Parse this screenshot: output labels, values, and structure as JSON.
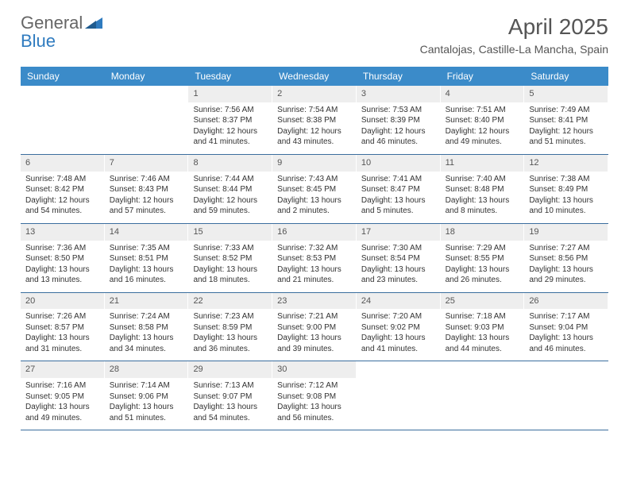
{
  "header": {
    "logo_text_1": "General",
    "logo_text_2": "Blue",
    "month_title": "April 2025",
    "location": "Cantalojas, Castille-La Mancha, Spain"
  },
  "colors": {
    "header_bar": "#3b8bc9",
    "header_bar_text": "#ffffff",
    "day_num_bg": "#eeeeee",
    "row_border": "#3b6e9e",
    "body_text": "#333333",
    "logo_gray": "#666666",
    "logo_blue": "#2f7bbf"
  },
  "weekdays": [
    "Sunday",
    "Monday",
    "Tuesday",
    "Wednesday",
    "Thursday",
    "Friday",
    "Saturday"
  ],
  "first_weekday_index": 2,
  "days": [
    {
      "n": "1",
      "sunrise": "7:56 AM",
      "sunset": "8:37 PM",
      "daylight": "12 hours and 41 minutes."
    },
    {
      "n": "2",
      "sunrise": "7:54 AM",
      "sunset": "8:38 PM",
      "daylight": "12 hours and 43 minutes."
    },
    {
      "n": "3",
      "sunrise": "7:53 AM",
      "sunset": "8:39 PM",
      "daylight": "12 hours and 46 minutes."
    },
    {
      "n": "4",
      "sunrise": "7:51 AM",
      "sunset": "8:40 PM",
      "daylight": "12 hours and 49 minutes."
    },
    {
      "n": "5",
      "sunrise": "7:49 AM",
      "sunset": "8:41 PM",
      "daylight": "12 hours and 51 minutes."
    },
    {
      "n": "6",
      "sunrise": "7:48 AM",
      "sunset": "8:42 PM",
      "daylight": "12 hours and 54 minutes."
    },
    {
      "n": "7",
      "sunrise": "7:46 AM",
      "sunset": "8:43 PM",
      "daylight": "12 hours and 57 minutes."
    },
    {
      "n": "8",
      "sunrise": "7:44 AM",
      "sunset": "8:44 PM",
      "daylight": "12 hours and 59 minutes."
    },
    {
      "n": "9",
      "sunrise": "7:43 AM",
      "sunset": "8:45 PM",
      "daylight": "13 hours and 2 minutes."
    },
    {
      "n": "10",
      "sunrise": "7:41 AM",
      "sunset": "8:47 PM",
      "daylight": "13 hours and 5 minutes."
    },
    {
      "n": "11",
      "sunrise": "7:40 AM",
      "sunset": "8:48 PM",
      "daylight": "13 hours and 8 minutes."
    },
    {
      "n": "12",
      "sunrise": "7:38 AM",
      "sunset": "8:49 PM",
      "daylight": "13 hours and 10 minutes."
    },
    {
      "n": "13",
      "sunrise": "7:36 AM",
      "sunset": "8:50 PM",
      "daylight": "13 hours and 13 minutes."
    },
    {
      "n": "14",
      "sunrise": "7:35 AM",
      "sunset": "8:51 PM",
      "daylight": "13 hours and 16 minutes."
    },
    {
      "n": "15",
      "sunrise": "7:33 AM",
      "sunset": "8:52 PM",
      "daylight": "13 hours and 18 minutes."
    },
    {
      "n": "16",
      "sunrise": "7:32 AM",
      "sunset": "8:53 PM",
      "daylight": "13 hours and 21 minutes."
    },
    {
      "n": "17",
      "sunrise": "7:30 AM",
      "sunset": "8:54 PM",
      "daylight": "13 hours and 23 minutes."
    },
    {
      "n": "18",
      "sunrise": "7:29 AM",
      "sunset": "8:55 PM",
      "daylight": "13 hours and 26 minutes."
    },
    {
      "n": "19",
      "sunrise": "7:27 AM",
      "sunset": "8:56 PM",
      "daylight": "13 hours and 29 minutes."
    },
    {
      "n": "20",
      "sunrise": "7:26 AM",
      "sunset": "8:57 PM",
      "daylight": "13 hours and 31 minutes."
    },
    {
      "n": "21",
      "sunrise": "7:24 AM",
      "sunset": "8:58 PM",
      "daylight": "13 hours and 34 minutes."
    },
    {
      "n": "22",
      "sunrise": "7:23 AM",
      "sunset": "8:59 PM",
      "daylight": "13 hours and 36 minutes."
    },
    {
      "n": "23",
      "sunrise": "7:21 AM",
      "sunset": "9:00 PM",
      "daylight": "13 hours and 39 minutes."
    },
    {
      "n": "24",
      "sunrise": "7:20 AM",
      "sunset": "9:02 PM",
      "daylight": "13 hours and 41 minutes."
    },
    {
      "n": "25",
      "sunrise": "7:18 AM",
      "sunset": "9:03 PM",
      "daylight": "13 hours and 44 minutes."
    },
    {
      "n": "26",
      "sunrise": "7:17 AM",
      "sunset": "9:04 PM",
      "daylight": "13 hours and 46 minutes."
    },
    {
      "n": "27",
      "sunrise": "7:16 AM",
      "sunset": "9:05 PM",
      "daylight": "13 hours and 49 minutes."
    },
    {
      "n": "28",
      "sunrise": "7:14 AM",
      "sunset": "9:06 PM",
      "daylight": "13 hours and 51 minutes."
    },
    {
      "n": "29",
      "sunrise": "7:13 AM",
      "sunset": "9:07 PM",
      "daylight": "13 hours and 54 minutes."
    },
    {
      "n": "30",
      "sunrise": "7:12 AM",
      "sunset": "9:08 PM",
      "daylight": "13 hours and 56 minutes."
    }
  ],
  "labels": {
    "sunrise": "Sunrise: ",
    "sunset": "Sunset: ",
    "daylight": "Daylight: "
  }
}
